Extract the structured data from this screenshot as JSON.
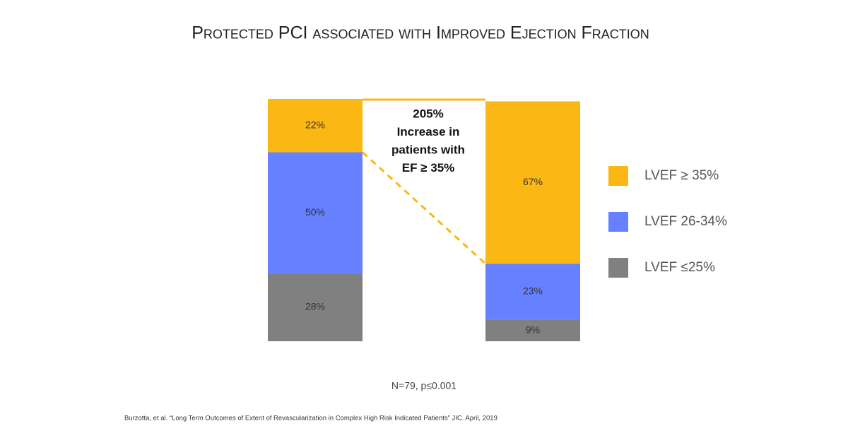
{
  "chart_data": {
    "type": "stacked-bar",
    "title": "Protected PCI associated with Improved Ejection Fraction",
    "categories": [
      null,
      null
    ],
    "ylim": [
      0,
      100
    ],
    "series": [
      {
        "name": "LVEF ≤25%",
        "color": "#808080",
        "values": [
          28,
          9
        ],
        "value_labels": [
          "28%",
          "9%"
        ]
      },
      {
        "name": "LVEF 26-34%",
        "color": "#6680ff",
        "values": [
          50,
          23
        ],
        "value_labels": [
          "50%",
          "23%"
        ]
      },
      {
        "name": "LVEF ≥ 35%",
        "color": "#fbb714",
        "values": [
          22,
          67
        ],
        "value_labels": [
          "22%",
          "67%"
        ]
      }
    ],
    "annotation": [
      "205%",
      "Increase in",
      "patients with",
      "EF ≥ 35%"
    ],
    "note": "N=79, p≤0.001",
    "citation": "Burzotta, et al. “Long Term Outcomes of Extent of Revascularization in Complex High Risk Indicated Patients” JIC. April, 2019"
  }
}
